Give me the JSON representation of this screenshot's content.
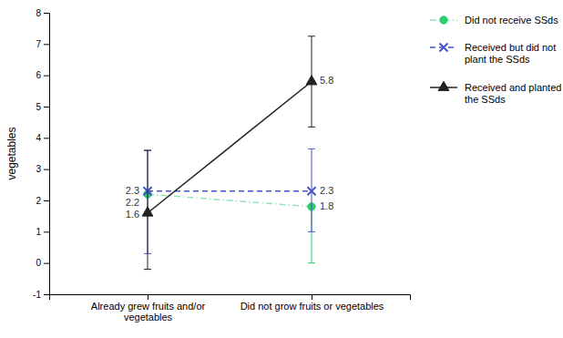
{
  "chart_data": {
    "type": "line",
    "categories": [
      "Already grew fruits and/or\nvegetables",
      "Did not grow fruits or vegetables"
    ],
    "series": [
      {
        "name": "Did not receive SSds",
        "color": "#2ecc71",
        "marker": "circle",
        "line_style": "dashdot",
        "values": [
          2.2,
          1.8
        ],
        "ci_low": [
          null,
          0.0
        ],
        "ci_high": [
          null,
          null
        ]
      },
      {
        "name": "Received but did not\nplant the SSds",
        "color": "#4455cc",
        "marker": "x",
        "line_style": "dashed",
        "values": [
          2.3,
          2.3
        ],
        "ci_low": [
          0.3,
          1.0
        ],
        "ci_high": [
          3.6,
          3.65
        ]
      },
      {
        "name": "Received and planted\nthe SSds",
        "color": "#222222",
        "marker": "triangle",
        "line_style": "solid",
        "values": [
          1.6,
          5.8
        ],
        "ci_low": [
          -0.2,
          4.35
        ],
        "ci_high": [
          3.6,
          7.25
        ]
      }
    ],
    "ylabel": "vegetables",
    "ylim": [
      -1.0,
      8.0
    ],
    "yticks": [
      -1.0,
      0.0,
      1.0,
      2.0,
      3.0,
      4.0,
      5.0,
      6.0,
      7.0,
      8.0
    ],
    "grid": false,
    "legend": "right",
    "data_labels": true
  }
}
